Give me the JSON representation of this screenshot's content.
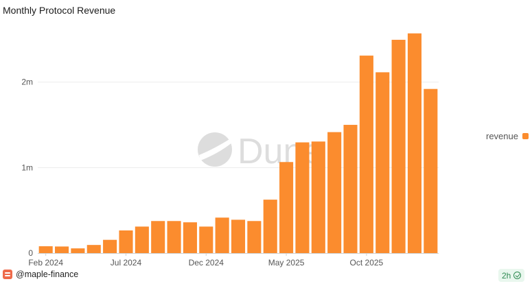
{
  "title": "Monthly Protocol Revenue",
  "watermark": "Dune",
  "creator": "@maple-finance",
  "refresh": "2h",
  "accent_color": "#fb8c2e",
  "chart_data": {
    "type": "bar",
    "title": "Monthly Protocol Revenue",
    "categories": [
      "2024-02",
      "2024-03",
      "2024-04",
      "2024-05",
      "2024-06",
      "2024-07",
      "2024-08",
      "2024-09",
      "2024-10",
      "2024-11",
      "2024-12",
      "2025-01",
      "2025-02",
      "2025-03",
      "2025-04",
      "2025-05",
      "2025-06",
      "2025-07",
      "2025-08",
      "2025-09",
      "2025-10",
      "2025-11",
      "2025-12",
      "2026-01",
      "2026-02"
    ],
    "series": [
      {
        "name": "revenue",
        "color": "#fb8c2e",
        "values": [
          80000,
          77000,
          55000,
          95000,
          155000,
          265000,
          310000,
          375000,
          375000,
          360000,
          310000,
          415000,
          390000,
          375000,
          625000,
          1065000,
          1295000,
          1305000,
          1415000,
          1500000,
          2310000,
          2115000,
          2495000,
          2570000,
          1920000
        ]
      }
    ],
    "x_tick_labels": [
      {
        "category": "2024-02",
        "label": "Feb 2024"
      },
      {
        "category": "2024-07",
        "label": "Jul 2024"
      },
      {
        "category": "2024-12",
        "label": "Dec 2024"
      },
      {
        "category": "2025-05",
        "label": "May 2025"
      },
      {
        "category": "2025-10",
        "label": "Oct 2025"
      }
    ],
    "y_ticks": [
      {
        "value": 0,
        "label": "0"
      },
      {
        "value": 1000000,
        "label": "1m"
      },
      {
        "value": 2000000,
        "label": "2m"
      }
    ],
    "ylim": [
      0,
      2800000
    ],
    "grid": true,
    "legend": "right"
  }
}
